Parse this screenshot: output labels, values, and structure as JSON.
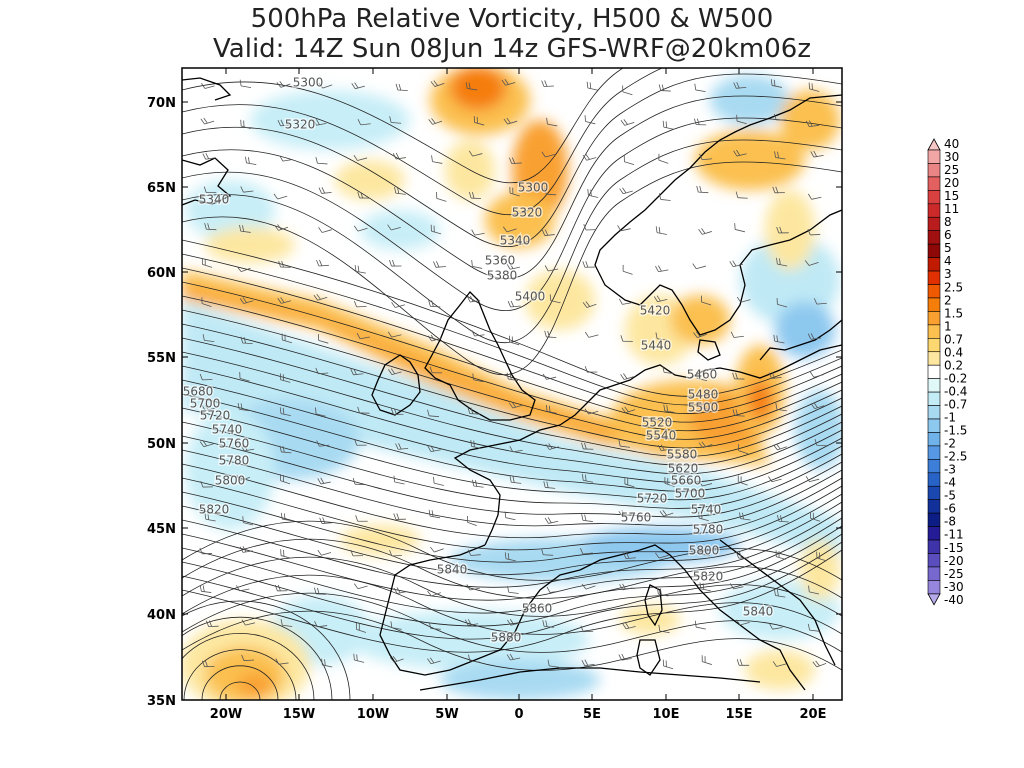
{
  "title": {
    "line1": "500hPa Relative Vorticity, H500 & W500",
    "line2": "Valid: 14Z Sun 08Jun 14z GFS-WRF@20km06z"
  },
  "map": {
    "lon_range": [
      -23,
      22
    ],
    "lat_range": [
      35,
      72
    ],
    "lon_ticks": [
      "20W",
      "15W",
      "10W",
      "5W",
      "0",
      "5E",
      "10E",
      "15E",
      "20E"
    ],
    "lat_ticks": [
      "70N",
      "65N",
      "60N",
      "55N",
      "50N",
      "45N",
      "40N",
      "35N"
    ],
    "contour_labels": [
      "5300",
      "5320",
      "5340",
      "5300",
      "5320",
      "5340",
      "5360",
      "5380",
      "5400",
      "5420",
      "5440",
      "5460",
      "5480",
      "5500",
      "5520",
      "5540",
      "5580",
      "5620",
      "5660",
      "5700",
      "5680",
      "5700",
      "5720",
      "5740",
      "5760",
      "5780",
      "5800",
      "5820",
      "5720",
      "5760",
      "5740",
      "5780",
      "5800",
      "5820",
      "5840",
      "5860",
      "5880",
      "5840"
    ]
  },
  "colorbar": {
    "labels": [
      "40",
      "30",
      "25",
      "20",
      "15",
      "11",
      "8",
      "6",
      "5",
      "4",
      "3",
      "2.5",
      "2",
      "1.5",
      "1",
      "0.7",
      "0.4",
      "0.2",
      "-0.2",
      "-0.4",
      "-0.7",
      "-1",
      "-1.5",
      "-2",
      "-2.5",
      "-3",
      "-4",
      "-5",
      "-6",
      "-8",
      "-11",
      "-15",
      "-20",
      "-25",
      "-30",
      "-40"
    ],
    "colors": [
      "#f7c7c7",
      "#f1a5a5",
      "#eb8585",
      "#e36060",
      "#d94040",
      "#cc2a2a",
      "#b81c1c",
      "#a01010",
      "#8e0808",
      "#c01a00",
      "#e03000",
      "#ef5a00",
      "#f57d0a",
      "#f9a030",
      "#fbc050",
      "#fdd870",
      "#fde7a0",
      "#ffffff",
      "#e0f8f8",
      "#c3ecf6",
      "#a8daf2",
      "#8dc8ef",
      "#70b2ea",
      "#5698e4",
      "#3c7ed8",
      "#2863c8",
      "#1a48b0",
      "#12309a",
      "#0d1d86",
      "#241c96",
      "#3f33aa",
      "#5a4dbd",
      "#7668ce",
      "#9686dd",
      "#b7aaeb"
    ]
  }
}
